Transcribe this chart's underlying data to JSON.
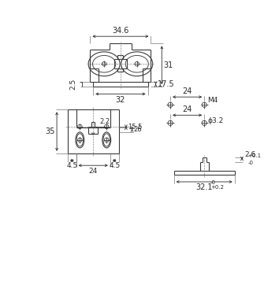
{
  "bg_color": "#ffffff",
  "line_color": "#3a3a3a",
  "dim_color": "#2a2a2a",
  "fig_width": 3.54,
  "fig_height": 3.85,
  "dpi": 100
}
